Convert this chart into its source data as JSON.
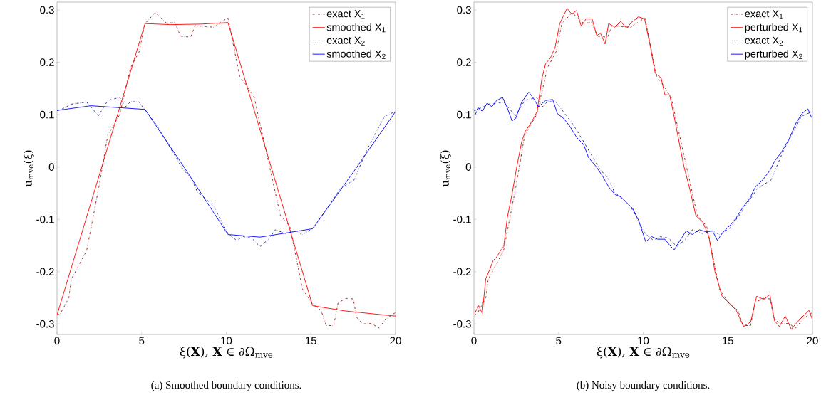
{
  "chart_data": [
    {
      "type": "line",
      "xlabel": "ξ(**X**), **X** ∈ ∂Ω$_{mve}$",
      "ylabel": "u$_{mve}$(ξ)",
      "annotations": [
        "(a) Smoothed boundary conditions."
      ],
      "xlim": [
        0,
        20
      ],
      "ylim": [
        -0.32,
        0.315
      ],
      "xticks": [
        0,
        5,
        10,
        15,
        20
      ],
      "yticks": [
        -0.3,
        -0.2,
        -0.1,
        0,
        0.1,
        0.2,
        0.3
      ],
      "legend": "top right",
      "series": [
        {
          "name": "exact X$_{1}$",
          "color": "#8b1a1a",
          "line_style": "dashdot",
          "x": [
            0,
            0.2,
            0.7,
            0.84,
            1.75,
            2.5,
            3.0,
            3.7,
            4.35,
            4.85,
            5.2,
            5.8,
            6.5,
            6.95,
            7.3,
            7.9,
            8.15,
            9.25,
            10.1,
            10.8,
            11.2,
            11.65,
            13.2,
            13.75,
            14.5,
            15.1,
            15.6,
            15.9,
            16.35,
            16.6,
            17.05,
            17.5,
            17.7,
            18.05,
            18.6,
            19.0,
            19.45,
            20
          ],
          "values": [
            -0.283,
            -0.28,
            -0.25,
            -0.215,
            -0.16,
            -0.034,
            0.061,
            0.1,
            0.19,
            0.22,
            0.274,
            0.295,
            0.274,
            0.277,
            0.25,
            0.248,
            0.27,
            0.267,
            0.285,
            0.172,
            0.156,
            0.133,
            -0.093,
            -0.113,
            -0.233,
            -0.262,
            -0.274,
            -0.303,
            -0.303,
            -0.26,
            -0.251,
            -0.252,
            -0.287,
            -0.3,
            -0.299,
            -0.308,
            -0.29,
            -0.278
          ]
        },
        {
          "name": "smoothed X$_{1}$",
          "color": "#ff0000",
          "line_style": "solid",
          "x": [
            0,
            5.2,
            6.7,
            8.5,
            10.1,
            15.1,
            17,
            20
          ],
          "values": [
            -0.283,
            0.274,
            0.272,
            0.273,
            0.276,
            -0.265,
            -0.275,
            -0.285
          ]
        },
        {
          "name": "exact X$_{2}$",
          "color": "#1a1a80",
          "line_style": "dashdot",
          "x": [
            0,
            0.2,
            0.84,
            1.75,
            2.45,
            3.0,
            3.7,
            4.05,
            4.35,
            4.85,
            5.2,
            5.8,
            6.45,
            7.45,
            7.9,
            8.3,
            8.8,
            9.25,
            10.1,
            10.6,
            11.0,
            11.5,
            12.0,
            12.5,
            12.9,
            13.5,
            14.1,
            14.5,
            15.1,
            15.85,
            16.75,
            17.55,
            18.25,
            19.35,
            20
          ],
          "values": [
            0.108,
            0.109,
            0.12,
            0.124,
            0.098,
            0.127,
            0.133,
            0.115,
            0.125,
            0.124,
            0.109,
            0.084,
            0.05,
            -0.005,
            -0.02,
            -0.048,
            -0.061,
            -0.075,
            -0.127,
            -0.14,
            -0.133,
            -0.136,
            -0.152,
            -0.138,
            -0.12,
            -0.127,
            -0.122,
            -0.129,
            -0.118,
            -0.084,
            -0.041,
            -0.025,
            0.029,
            0.097,
            0.106
          ]
        },
        {
          "name": "smoothed X$_{2}$",
          "color": "#0000ff",
          "line_style": "solid",
          "x": [
            0,
            2,
            5.2,
            7.5,
            10.1,
            12,
            15.1,
            17.5,
            20
          ],
          "values": [
            0.108,
            0.117,
            0.11,
            0.0,
            -0.129,
            -0.134,
            -0.118,
            -0.01,
            0.106
          ]
        }
      ]
    },
    {
      "type": "line",
      "xlabel": "ξ(**X**), **X** ∈ ∂Ω$_{mve}$",
      "ylabel": "u$_{mve}$(ξ)",
      "annotations": [
        "(b) Noisy boundary conditions."
      ],
      "xlim": [
        0,
        20
      ],
      "ylim": [
        -0.32,
        0.315
      ],
      "xticks": [
        0,
        5,
        10,
        15,
        20
      ],
      "yticks": [
        -0.3,
        -0.2,
        -0.1,
        0,
        0.1,
        0.2,
        0.3
      ],
      "legend": "top right",
      "series": [
        {
          "name": "exact X$_{1}$",
          "color": "#8b1a1a",
          "line_style": "dashdot",
          "x": [
            0,
            0.2,
            0.7,
            0.84,
            1.75,
            2.5,
            3.0,
            3.7,
            4.35,
            4.85,
            5.2,
            5.8,
            6.5,
            6.95,
            7.3,
            7.9,
            8.15,
            9.25,
            10.1,
            10.8,
            11.2,
            11.65,
            13.2,
            13.75,
            14.5,
            15.1,
            15.6,
            15.9,
            16.35,
            16.6,
            17.05,
            17.5,
            17.7,
            18.05,
            18.6,
            19.0,
            19.45,
            20
          ],
          "values": [
            -0.283,
            -0.28,
            -0.25,
            -0.215,
            -0.16,
            -0.034,
            0.061,
            0.1,
            0.19,
            0.22,
            0.274,
            0.295,
            0.274,
            0.277,
            0.25,
            0.248,
            0.27,
            0.267,
            0.285,
            0.172,
            0.156,
            0.133,
            -0.093,
            -0.113,
            -0.233,
            -0.262,
            -0.274,
            -0.303,
            -0.303,
            -0.26,
            -0.251,
            -0.252,
            -0.287,
            -0.3,
            -0.299,
            -0.308,
            -0.29,
            -0.278
          ]
        },
        {
          "name": "perturbed X$_{1}$",
          "color": "#ff0000",
          "line_style": "solid",
          "x": [
            0.07,
            0.28,
            0.49,
            0.7,
            0.92,
            1.13,
            1.34,
            1.55,
            1.76,
            1.97,
            2.25,
            2.54,
            2.82,
            3.03,
            3.31,
            3.52,
            3.73,
            4.02,
            4.23,
            4.51,
            4.79,
            5.07,
            5.5,
            5.78,
            6.06,
            6.34,
            6.62,
            6.98,
            7.26,
            7.47,
            7.75,
            7.96,
            8.32,
            8.67,
            9.02,
            9.3,
            9.72,
            10.08,
            10.43,
            10.71,
            11.06,
            11.28,
            11.56,
            11.77,
            12.12,
            12.4,
            12.76,
            13.11,
            13.53,
            13.88,
            14.24,
            14.66,
            15.08,
            15.5,
            15.93,
            16.35,
            16.7,
            17.12,
            17.48,
            17.76,
            18.04,
            18.39,
            18.75,
            19.03,
            19.38,
            19.8,
            20.0
          ],
          "values": [
            -0.278,
            -0.265,
            -0.28,
            -0.213,
            -0.197,
            -0.179,
            -0.172,
            -0.161,
            -0.152,
            -0.097,
            -0.052,
            0.002,
            0.048,
            0.068,
            0.081,
            0.093,
            0.106,
            0.17,
            0.197,
            0.208,
            0.228,
            0.274,
            0.303,
            0.292,
            0.299,
            0.269,
            0.283,
            0.283,
            0.251,
            0.256,
            0.235,
            0.274,
            0.267,
            0.278,
            0.265,
            0.276,
            0.287,
            0.283,
            0.229,
            0.179,
            0.17,
            0.138,
            0.138,
            0.106,
            0.048,
            0.002,
            -0.043,
            -0.093,
            -0.106,
            -0.133,
            -0.2,
            -0.247,
            -0.26,
            -0.274,
            -0.305,
            -0.296,
            -0.247,
            -0.253,
            -0.244,
            -0.294,
            -0.305,
            -0.285,
            -0.31,
            -0.299,
            -0.287,
            -0.274,
            -0.292
          ]
        },
        {
          "name": "exact X$_{2}$",
          "color": "#1a1a80",
          "line_style": "dashdot",
          "x": [
            0,
            0.2,
            0.84,
            1.75,
            2.45,
            3.0,
            3.7,
            4.05,
            4.35,
            4.85,
            5.2,
            5.8,
            6.45,
            7.45,
            7.9,
            8.3,
            8.8,
            9.25,
            10.1,
            10.6,
            11.0,
            11.5,
            12.0,
            12.5,
            12.9,
            13.5,
            14.1,
            14.5,
            15.1,
            15.85,
            16.75,
            17.55,
            18.25,
            19.35,
            20
          ],
          "values": [
            0.108,
            0.109,
            0.12,
            0.124,
            0.098,
            0.127,
            0.133,
            0.115,
            0.125,
            0.124,
            0.109,
            0.084,
            0.05,
            -0.005,
            -0.02,
            -0.048,
            -0.061,
            -0.075,
            -0.127,
            -0.14,
            -0.133,
            -0.136,
            -0.152,
            -0.138,
            -0.12,
            -0.127,
            -0.122,
            -0.129,
            -0.118,
            -0.084,
            -0.041,
            -0.025,
            0.029,
            0.097,
            0.106
          ]
        },
        {
          "name": "perturbed X$_{2}$",
          "color": "#0000ff",
          "line_style": "solid",
          "x": [
            0.07,
            0.28,
            0.49,
            0.78,
            1.06,
            1.34,
            1.69,
            1.97,
            2.25,
            2.47,
            2.82,
            3.24,
            3.52,
            3.81,
            4.23,
            4.65,
            4.93,
            5.29,
            5.64,
            6.06,
            6.48,
            6.77,
            7.19,
            7.61,
            7.96,
            8.32,
            8.67,
            9.02,
            9.37,
            9.73,
            10.15,
            10.5,
            10.85,
            11.28,
            11.63,
            11.84,
            12.12,
            12.54,
            12.9,
            13.32,
            13.74,
            14.09,
            14.38,
            14.73,
            15.15,
            15.5,
            15.93,
            16.28,
            16.63,
            17.05,
            17.48,
            17.76,
            18.18,
            18.6,
            19.03,
            19.38,
            19.73,
            19.94
          ],
          "values": [
            0.1,
            0.113,
            0.106,
            0.122,
            0.115,
            0.127,
            0.133,
            0.113,
            0.088,
            0.093,
            0.124,
            0.143,
            0.131,
            0.115,
            0.127,
            0.129,
            0.102,
            0.093,
            0.079,
            0.057,
            0.043,
            0.018,
            0.002,
            -0.018,
            -0.038,
            -0.052,
            -0.057,
            -0.068,
            -0.079,
            -0.102,
            -0.143,
            -0.133,
            -0.138,
            -0.138,
            -0.152,
            -0.158,
            -0.143,
            -0.122,
            -0.129,
            -0.12,
            -0.124,
            -0.122,
            -0.14,
            -0.124,
            -0.111,
            -0.097,
            -0.075,
            -0.061,
            -0.038,
            -0.025,
            -0.007,
            0.011,
            0.029,
            0.052,
            0.084,
            0.102,
            0.111,
            0.095
          ]
        }
      ]
    }
  ]
}
